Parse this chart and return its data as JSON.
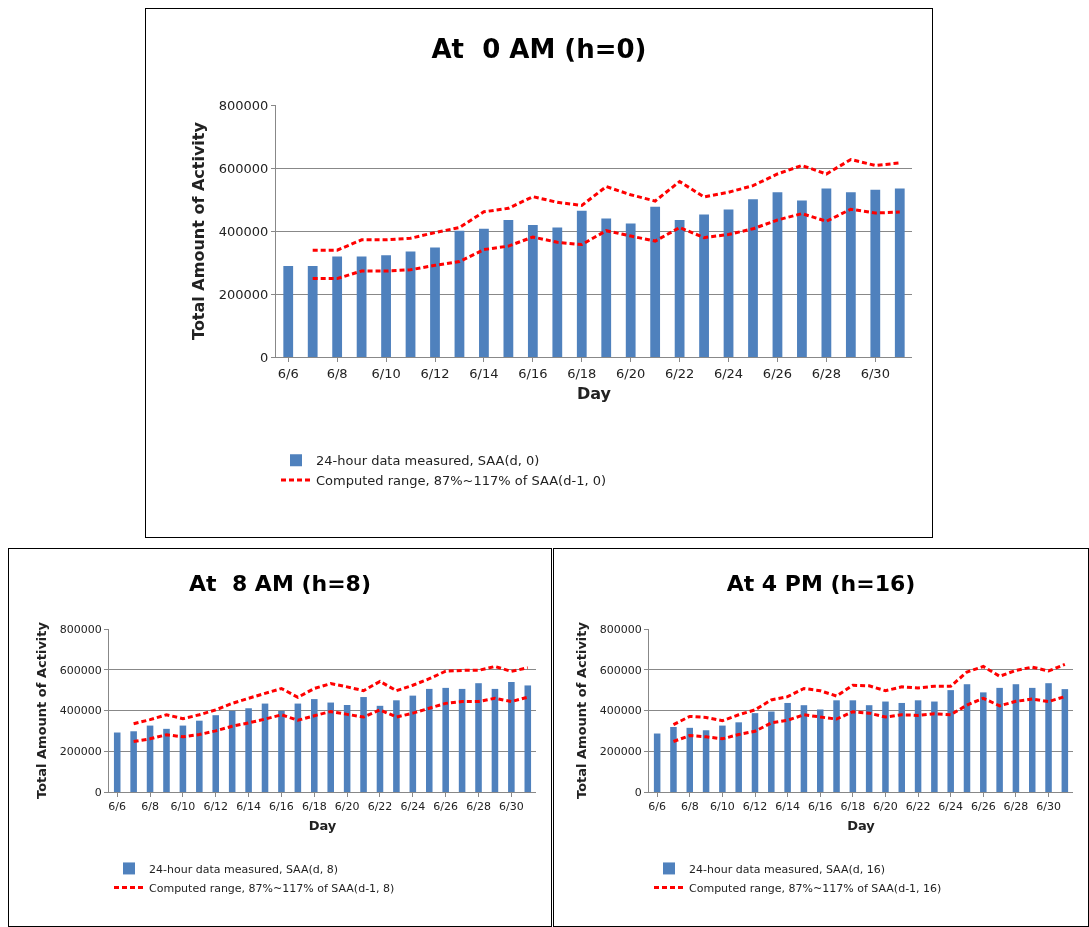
{
  "chart_data": [
    {
      "type": "bar",
      "title": "At  0 AM (h=0)",
      "xlabel": "Day",
      "ylabel": "Total Amount of Activity",
      "categories": [
        "6/6",
        null,
        "6/8",
        null,
        "6/10",
        null,
        "6/12",
        null,
        "6/14",
        null,
        "6/16",
        null,
        "6/18",
        null,
        "6/20",
        null,
        "6/22",
        null,
        "6/24",
        null,
        "6/26",
        null,
        "6/28",
        null,
        "6/30",
        null
      ],
      "series": [
        {
          "name": "24-hour data measured, SAA(d, 0)",
          "color": "#4f81bd",
          "values": [
            289000,
            289000,
            319000,
            319000,
            323000,
            335000,
            348000,
            401000,
            407000,
            435000,
            419000,
            411000,
            464000,
            440000,
            424000,
            477000,
            435000,
            452000,
            468000,
            501000,
            523000,
            497000,
            535000,
            523000,
            531000,
            535000
          ]
        },
        {
          "name": "Computed range, 87%~117% of SAA(d-1, 0)",
          "type": "line",
          "line_style": "dashed",
          "color": "#ff0000",
          "values": [
            null,
            339000,
            339000,
            372000,
            372000,
            377000,
            395000,
            411000,
            461000,
            472000,
            509000,
            491000,
            481000,
            541000,
            515000,
            495000,
            557000,
            508000,
            523000,
            544000,
            581000,
            608000,
            581000,
            627000,
            608000,
            616000
          ]
        },
        {
          "type": "line",
          "line_style": "dashed",
          "color": "#ff0000",
          "values": [
            null,
            249000,
            249000,
            273000,
            273000,
            277000,
            291000,
            303000,
            341000,
            352000,
            381000,
            364000,
            357000,
            401000,
            384000,
            368000,
            411000,
            379000,
            389000,
            407000,
            435000,
            455000,
            431000,
            469000,
            457000,
            460000
          ]
        }
      ],
      "ylim": [
        0,
        800000
      ],
      "yticks": [
        0,
        200000,
        400000,
        600000,
        800000
      ],
      "grid": "y",
      "legend": "bottom"
    },
    {
      "type": "bar",
      "title": "At  8 AM (h=8)",
      "xlabel": "Day",
      "ylabel": "Total Amount of Activity",
      "categories": [
        "6/6",
        null,
        "6/8",
        null,
        "6/10",
        null,
        "6/12",
        null,
        "6/14",
        null,
        "6/16",
        null,
        "6/18",
        null,
        "6/20",
        null,
        "6/22",
        null,
        "6/24",
        null,
        "6/26",
        null,
        "6/28",
        null,
        "6/30",
        null
      ],
      "series": [
        {
          "name": "24-hour data measured, SAA(d, 8)",
          "color": "#4f81bd",
          "values": [
            292000,
            298000,
            326000,
            310000,
            326000,
            350000,
            377000,
            398000,
            411000,
            434000,
            398000,
            434000,
            456000,
            439000,
            427000,
            466000,
            423000,
            450000,
            473000,
            506000,
            511000,
            506000,
            534000,
            506000,
            540000,
            523000
          ]
        },
        {
          "name": "Computed range, 87%~117% of SAA(d-1, 8)",
          "type": "line",
          "line_style": "dashed",
          "color": "#ff0000",
          "values": [
            null,
            335000,
            355000,
            379000,
            360000,
            379000,
            403000,
            435000,
            460000,
            484000,
            508000,
            465000,
            508000,
            532000,
            516000,
            497000,
            543000,
            497000,
            524000,
            556000,
            593000,
            597000,
            597000,
            616000,
            592000,
            610000
          ]
        },
        {
          "type": "line",
          "line_style": "dashed",
          "color": "#ff0000",
          "values": [
            null,
            248000,
            261000,
            281000,
            271000,
            282000,
            300000,
            323000,
            339000,
            358000,
            379000,
            352000,
            374000,
            395000,
            381000,
            368000,
            403000,
            368000,
            387000,
            411000,
            435000,
            444000,
            444000,
            460000,
            444000,
            465000
          ]
        }
      ],
      "ylim": [
        0,
        800000
      ],
      "yticks": [
        0,
        200000,
        400000,
        600000,
        800000
      ],
      "grid": "y",
      "legend": "bottom"
    },
    {
      "type": "bar",
      "title": "At 4 PM (h=16)",
      "xlabel": "Day",
      "ylabel": "Total Amount of Activity",
      "categories": [
        "6/6",
        null,
        "6/8",
        null,
        "6/10",
        null,
        "6/12",
        null,
        "6/14",
        null,
        "6/16",
        null,
        "6/18",
        null,
        "6/20",
        null,
        "6/22",
        null,
        "6/24",
        null,
        "6/26",
        null,
        "6/28",
        null,
        "6/30",
        null
      ],
      "series": [
        {
          "name": "24-hour data measured, SAA(d, 16)",
          "color": "#4f81bd",
          "values": [
            287000,
            319000,
            315000,
            303000,
            326000,
            342000,
            387000,
            395000,
            437000,
            426000,
            405000,
            450000,
            450000,
            426000,
            444000,
            437000,
            450000,
            444000,
            500000,
            529000,
            489000,
            511000,
            529000,
            511000,
            534000,
            505000
          ]
        },
        {
          "name": "Computed range, 87%~117% of SAA(d-1, 16)",
          "type": "line",
          "line_style": "dashed",
          "color": "#ff0000",
          "values": [
            null,
            331000,
            371000,
            366000,
            350000,
            379000,
            403000,
            452000,
            468000,
            508000,
            497000,
            471000,
            524000,
            521000,
            497000,
            516000,
            511000,
            519000,
            519000,
            589000,
            616000,
            568000,
            597000,
            613000,
            594000,
            626000
          ]
        },
        {
          "type": "line",
          "line_style": "dashed",
          "color": "#ff0000",
          "values": [
            null,
            248000,
            277000,
            271000,
            261000,
            282000,
            298000,
            339000,
            352000,
            379000,
            368000,
            358000,
            394000,
            387000,
            368000,
            379000,
            376000,
            384000,
            379000,
            427000,
            460000,
            423000,
            445000,
            456000,
            444000,
            468000
          ]
        }
      ],
      "ylim": [
        0,
        800000
      ],
      "yticks": [
        0,
        200000,
        400000,
        600000,
        800000
      ],
      "grid": "y",
      "legend": "bottom"
    }
  ]
}
